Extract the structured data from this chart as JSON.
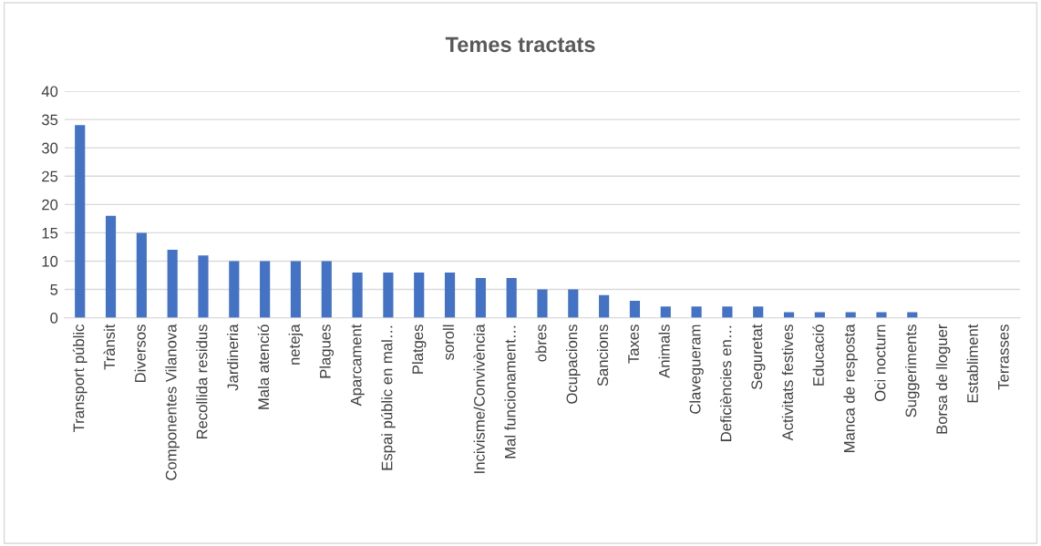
{
  "chart_data": {
    "type": "bar",
    "title": "Temes tractats",
    "categories": [
      "Transport públic",
      "Trànsit",
      "Diversos",
      "Componentes Vilanova",
      "Recollida residus",
      "Jardineria",
      "Mala atenció",
      "neteja",
      "Plagues",
      "Aparcament",
      "Espai públic en mal…",
      "Platges",
      "soroll",
      "Incivisme/Convivència",
      "Mal funcionament…",
      "obres",
      "Ocupacions",
      "Sancions",
      "Taxes",
      "Animals",
      "Clavegueram",
      "Deficiències en…",
      "Seguretat",
      "Activitats festives",
      "Educació",
      "Manca de resposta",
      "Oci nocturn",
      "Suggeriments",
      "Borsa de lloguer",
      "Establiment",
      "Terrasses"
    ],
    "values": [
      34,
      18,
      15,
      12,
      11,
      10,
      10,
      10,
      10,
      8,
      8,
      8,
      8,
      7,
      7,
      5,
      5,
      4,
      3,
      2,
      2,
      2,
      2,
      1,
      1,
      1,
      1,
      1,
      0,
      0,
      0
    ],
    "color": "#4472c4",
    "ylim": [
      0,
      40
    ],
    "yticks": [
      0,
      5,
      10,
      15,
      20,
      25,
      30,
      35,
      40
    ],
    "grid": "y"
  }
}
